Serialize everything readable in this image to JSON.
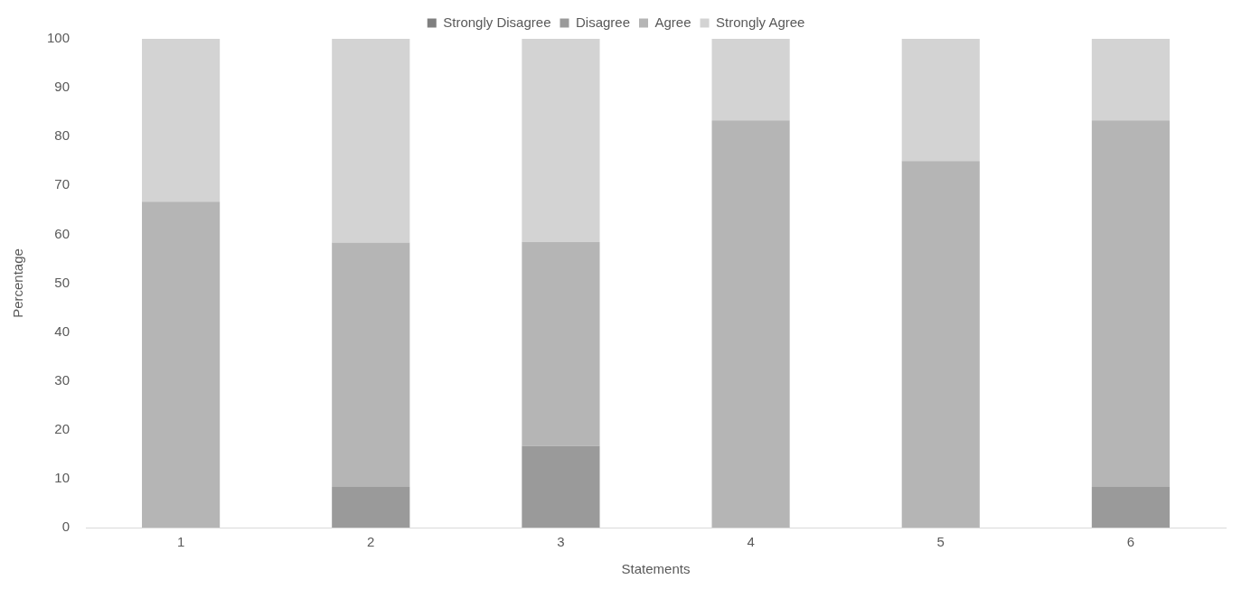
{
  "chart_data": {
    "type": "bar",
    "stacked": true,
    "xlabel": "Statements",
    "ylabel": "Percentage",
    "categories": [
      "1",
      "2",
      "3",
      "4",
      "5",
      "6"
    ],
    "ylim": [
      0,
      100
    ],
    "yticks": [
      0,
      10,
      20,
      30,
      40,
      50,
      60,
      70,
      80,
      90,
      100
    ],
    "grid": false,
    "legend": "top",
    "series": [
      {
        "name": "Strongly Disagree",
        "color": "#7f7f7f",
        "values": [
          0,
          0,
          0,
          0,
          0,
          0
        ]
      },
      {
        "name": "Disagree",
        "color": "#9a9a9a",
        "values": [
          0,
          8.3,
          16.7,
          0,
          0,
          8.3
        ]
      },
      {
        "name": "Agree",
        "color": "#b5b5b5",
        "values": [
          66.7,
          50,
          41.7,
          83.3,
          75,
          75
        ]
      },
      {
        "name": "Strongly Agree",
        "color": "#d3d3d3",
        "values": [
          33.3,
          41.7,
          41.7,
          16.7,
          25,
          16.7
        ]
      }
    ]
  }
}
